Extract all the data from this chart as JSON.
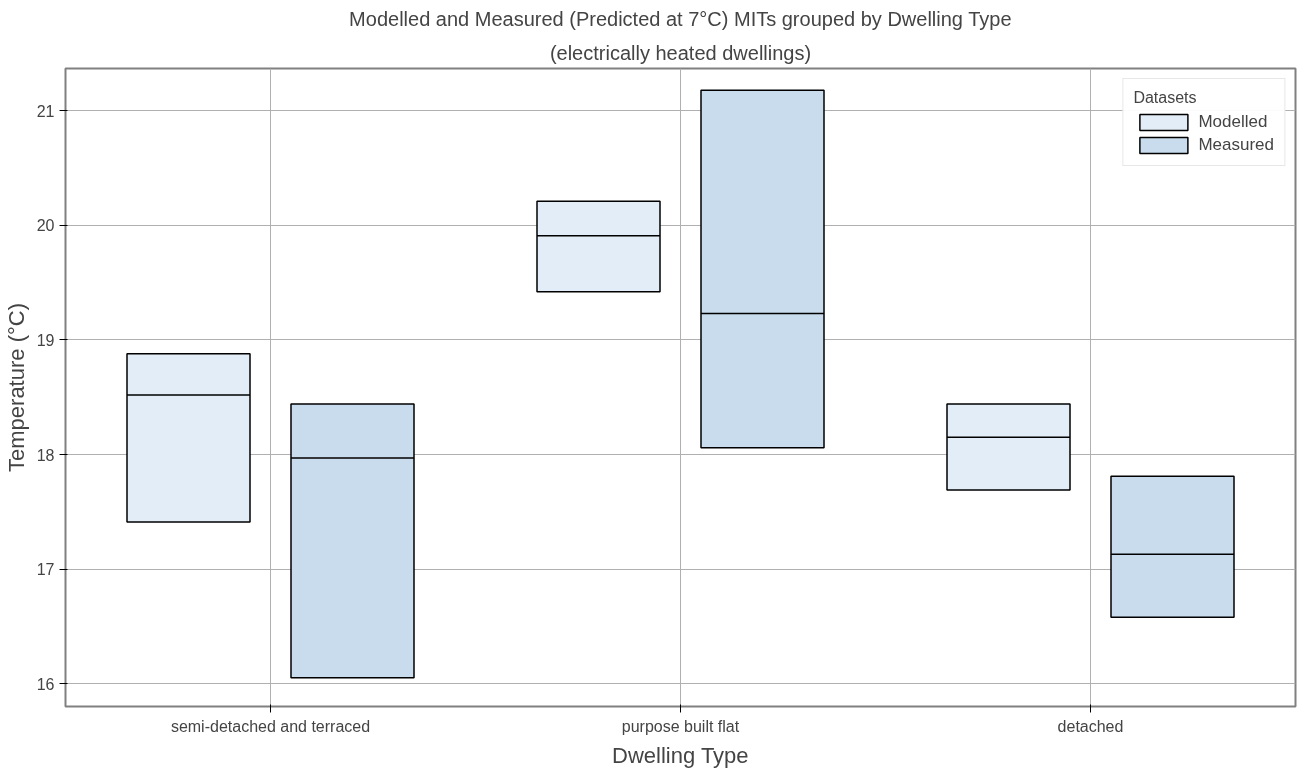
{
  "chart_data": {
    "type": "box",
    "title": "Modelled and Measured (Predicted at 7°C) MITs grouped by Dwelling Type",
    "subtitle": "(electrically heated dwellings)",
    "xlabel": "Dwelling Type",
    "ylabel": "Temperature (°C)",
    "legend_title": "Datasets",
    "categories": [
      "semi-detached and terraced",
      "purpose built flat",
      "detached"
    ],
    "series": [
      {
        "name": "Modelled",
        "color": "#e3edf7",
        "boxes": [
          {
            "low": 17.41,
            "q1": 17.41,
            "median": 18.52,
            "q3": 18.88,
            "high": 18.88
          },
          {
            "low": 19.42,
            "q1": 19.42,
            "median": 19.91,
            "q3": 20.21,
            "high": 20.21
          },
          {
            "low": 17.69,
            "q1": 17.69,
            "median": 18.15,
            "q3": 18.44,
            "high": 18.44
          }
        ]
      },
      {
        "name": "Measured",
        "color": "#c9dcee",
        "boxes": [
          {
            "low": 16.05,
            "q1": 16.05,
            "median": 17.97,
            "q3": 18.44,
            "high": 18.44
          },
          {
            "low": 18.06,
            "q1": 18.06,
            "median": 19.23,
            "q3": 21.18,
            "high": 21.18
          },
          {
            "low": 16.58,
            "q1": 16.58,
            "median": 17.13,
            "q3": 17.81,
            "high": 17.81
          }
        ]
      }
    ],
    "ylim": [
      15.8,
      21.37
    ],
    "yticks": [
      16,
      17,
      18,
      19,
      20,
      21
    ],
    "grid": true,
    "legend": "top right"
  }
}
